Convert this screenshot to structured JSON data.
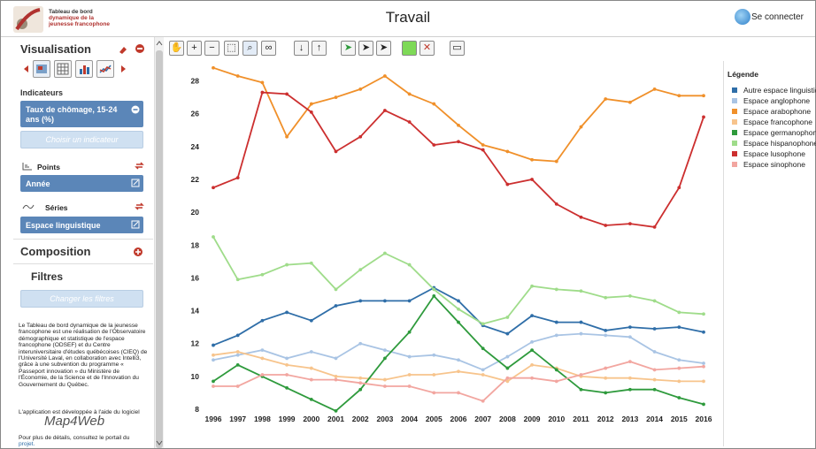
{
  "header": {
    "logo_line1": "Tableau de bord",
    "logo_line2": "dynamique de la",
    "logo_line3": "jeunesse francophone",
    "title": "Travail",
    "login_label": "Se connecter"
  },
  "sidebar": {
    "visualisation_title": "Visualisation",
    "indicateurs_title": "Indicateurs",
    "indicator_selected": "Taux de chômage, 15-24 ans (%)",
    "choose_indicator_label": "Choisir un indicateur",
    "points_label": "Points",
    "points_value": "Année",
    "series_label": "Séries",
    "series_value": "Espace linguistique",
    "composition_title": "Composition",
    "filtres_title": "Filtres",
    "change_filters_label": "Changer les filtres",
    "about_text": "Le Tableau de bord dynamique de la jeunesse francophone est une réalisation de l'Observatoire démographique et statistique de l'espace francophone (ODSEF) et du Centre interuniversitaire d'études québécoises (CIEQ) de l'Université Laval, en collaboration avec Intelli3, grâce à une subvention du programme « Passeport innovation » du Ministère de l'Économie, de la Science et de l'Innovation du Gouvernement du Québec.",
    "app_dev_text": "L'application est développée à l'aide du logiciel",
    "software_name": "Map4Web",
    "more_text": "Pour plus de détails, consultez le portail du",
    "more_link": "projet."
  },
  "colors": {
    "accent_blue": "#5b86b8",
    "red_icon": "#c0392b"
  },
  "legend": {
    "title": "Légende"
  },
  "chart_data": {
    "type": "line",
    "x": [
      "1996",
      "1997",
      "1998",
      "1999",
      "2000",
      "2001",
      "2002",
      "2003",
      "2004",
      "2005",
      "2006",
      "2007",
      "2008",
      "2009",
      "2010",
      "2011",
      "2012",
      "2013",
      "2014",
      "2015",
      "2016"
    ],
    "ylim": [
      8,
      29
    ],
    "yticks": [
      "8",
      "10",
      "12",
      "14",
      "16",
      "18",
      "20",
      "22",
      "24",
      "26",
      "28"
    ],
    "grid": false,
    "legend_position": "right",
    "series": [
      {
        "name": "Autre espace linguistique",
        "color": "#2f6ea8",
        "values": [
          11.9,
          12.5,
          13.4,
          13.9,
          13.4,
          14.3,
          14.6,
          14.6,
          14.6,
          15.4,
          14.6,
          13.1,
          12.6,
          13.7,
          13.3,
          13.3,
          12.8,
          13.0,
          12.9,
          13.0,
          12.7
        ]
      },
      {
        "name": "Espace anglophone",
        "color": "#a9c4e4",
        "values": [
          11.0,
          11.3,
          11.6,
          11.1,
          11.5,
          11.1,
          12.0,
          11.6,
          11.2,
          11.3,
          11.0,
          10.4,
          11.2,
          12.1,
          12.5,
          12.6,
          12.5,
          12.4,
          11.5,
          11.0,
          10.8
        ]
      },
      {
        "name": "Espace arabophone",
        "color": "#f0902a",
        "values": [
          28.8,
          28.3,
          27.9,
          24.6,
          26.6,
          27.0,
          27.5,
          28.3,
          27.2,
          26.6,
          25.3,
          24.1,
          23.7,
          23.2,
          23.1,
          25.2,
          26.9,
          26.7,
          27.5,
          27.1,
          27.1
        ]
      },
      {
        "name": "Espace francophone",
        "color": "#f7c48c",
        "values": [
          11.3,
          11.5,
          11.1,
          10.7,
          10.5,
          10.0,
          9.9,
          9.8,
          10.1,
          10.1,
          10.3,
          10.1,
          9.7,
          10.7,
          10.5,
          10.0,
          9.9,
          9.9,
          9.8,
          9.7,
          9.7
        ]
      },
      {
        "name": "Espace germanophone",
        "color": "#2e9a3c",
        "values": [
          9.7,
          10.7,
          10.0,
          9.3,
          8.6,
          7.9,
          9.2,
          11.1,
          12.7,
          14.9,
          13.3,
          11.7,
          10.5,
          11.6,
          10.4,
          9.2,
          9.0,
          9.2,
          9.2,
          8.7,
          8.3
        ]
      },
      {
        "name": "Espace hispanophone",
        "color": "#9fdc8a",
        "values": [
          18.5,
          15.9,
          16.2,
          16.8,
          16.9,
          15.3,
          16.5,
          17.5,
          16.8,
          15.3,
          14.1,
          13.2,
          13.6,
          15.5,
          15.3,
          15.2,
          14.8,
          14.9,
          14.6,
          13.9,
          13.8
        ]
      },
      {
        "name": "Espace lusophone",
        "color": "#cc2f2f",
        "values": [
          21.5,
          22.1,
          27.3,
          27.2,
          26.1,
          23.7,
          24.6,
          26.2,
          25.5,
          24.1,
          24.3,
          23.8,
          21.7,
          22.0,
          20.5,
          19.7,
          19.2,
          19.3,
          19.1,
          21.5,
          25.8
        ]
      },
      {
        "name": "Espace sinophone",
        "color": "#f2a6a0",
        "values": [
          9.4,
          9.4,
          10.1,
          10.1,
          9.8,
          9.8,
          9.6,
          9.4,
          9.4,
          9.0,
          9.0,
          8.5,
          9.9,
          9.9,
          9.7,
          10.1,
          10.5,
          10.9,
          10.4,
          10.5,
          10.6
        ]
      }
    ]
  }
}
